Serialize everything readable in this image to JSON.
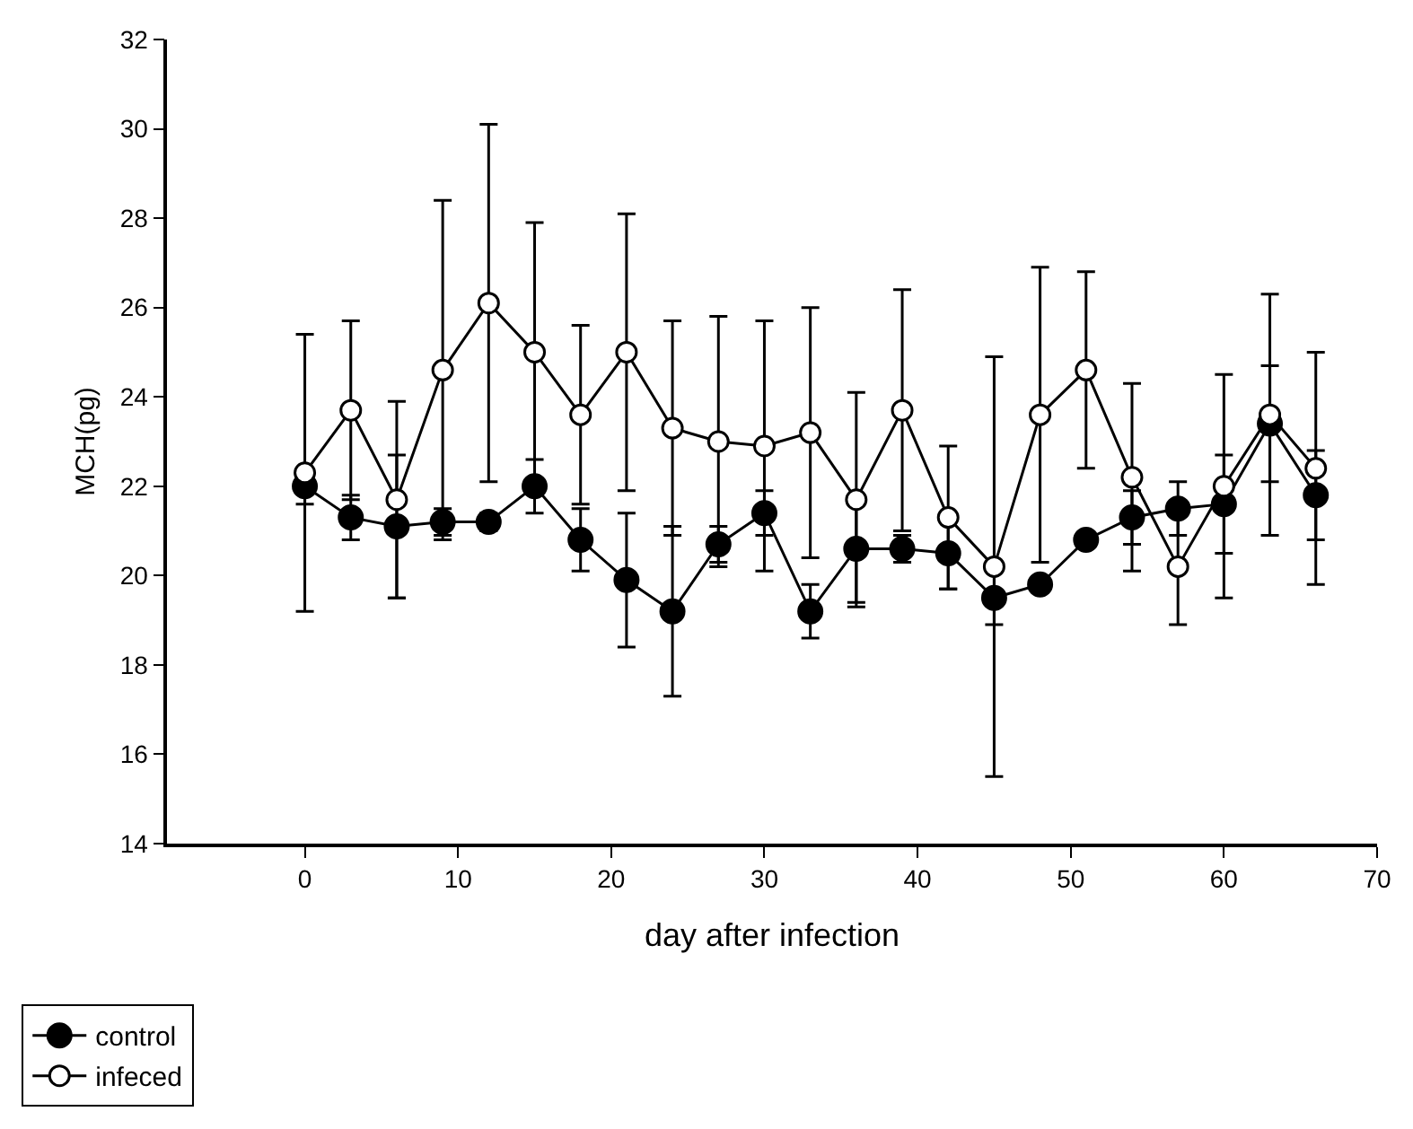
{
  "chart_data": {
    "type": "line",
    "xlabel": "day after infection",
    "ylabel": "MCH(pg)",
    "x": [
      0,
      3,
      6,
      9,
      12,
      15,
      18,
      21,
      24,
      27,
      30,
      33,
      36,
      39,
      42,
      45,
      48,
      51,
      54,
      57,
      60,
      63,
      66
    ],
    "series": [
      {
        "name": "control",
        "color": "#000000",
        "marker": "circle",
        "values": [
          22.0,
          21.3,
          21.1,
          21.2,
          21.2,
          22.0,
          20.8,
          19.9,
          19.2,
          20.7,
          21.4,
          19.2,
          20.6,
          20.6,
          20.5,
          19.5,
          19.8,
          20.8,
          21.3,
          21.5,
          21.6,
          23.4,
          21.8
        ],
        "errors": [
          0.4,
          0.5,
          1.6,
          0.3,
          0.2,
          0.6,
          0.7,
          1.5,
          1.9,
          0.4,
          0.5,
          0.6,
          1.2,
          0.3,
          0.8,
          0.6,
          0.1,
          0.1,
          0.6,
          0.6,
          1.1,
          1.3,
          1.0
        ]
      },
      {
        "name": "infeced",
        "color": "#ffffff",
        "marker": "circle",
        "values": [
          22.3,
          23.7,
          21.7,
          24.6,
          26.1,
          25.0,
          23.6,
          25.0,
          23.3,
          23.0,
          22.9,
          23.2,
          21.7,
          23.7,
          21.3,
          20.2,
          23.6,
          24.6,
          22.2,
          20.2,
          22.0,
          23.6,
          22.4
        ],
        "errors": [
          3.1,
          2.0,
          2.2,
          3.8,
          4.0,
          2.9,
          2.0,
          3.1,
          2.4,
          2.8,
          2.8,
          2.8,
          2.4,
          2.7,
          1.6,
          4.7,
          3.3,
          2.2,
          2.1,
          1.3,
          2.5,
          2.7,
          2.6
        ]
      }
    ],
    "xlim": [
      -9,
      70
    ],
    "xticks": [
      0,
      10,
      20,
      30,
      40,
      50,
      60,
      70
    ],
    "ylim": [
      14,
      32
    ],
    "yticks": [
      14,
      16,
      18,
      20,
      22,
      24,
      26,
      28,
      30,
      32
    ],
    "grid": false,
    "legend": "bottom left",
    "line_style": "solid"
  }
}
